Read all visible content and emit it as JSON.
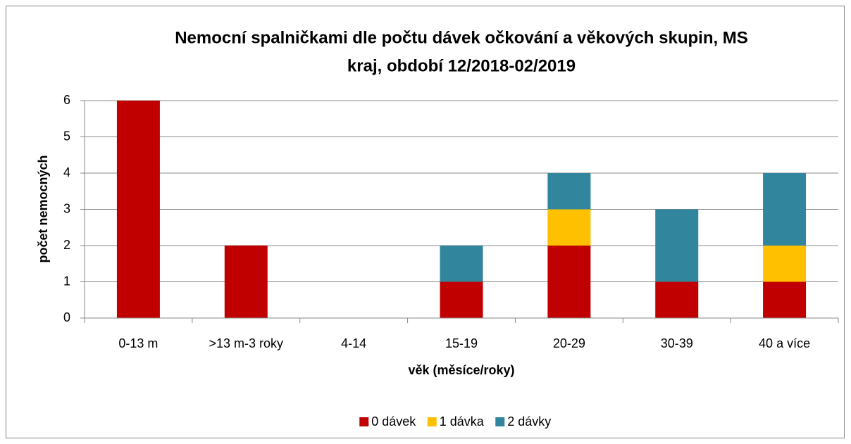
{
  "chart_data": {
    "type": "stacked_bar",
    "title": [
      "Nemocní spalničkami dle počtu dávek očkování a věkových skupin, MS",
      "kraj, období 12/2018-02/2019"
    ],
    "x_label": "věk (měsíce/roky)",
    "y_label": "počet nemocných",
    "categories": [
      "0-13 m",
      ">13 m-3 roky",
      "4-14",
      "15-19",
      "20-29",
      "30-39",
      "40 a více"
    ],
    "series": [
      {
        "name": "0 dávek",
        "color": "#c00000",
        "values": [
          6,
          2,
          0,
          1,
          2,
          1,
          1
        ]
      },
      {
        "name": "1 dávka",
        "color": "#ffc000",
        "values": [
          0,
          0,
          0,
          0,
          1,
          0,
          1
        ]
      },
      {
        "name": "2 dávky",
        "color": "#31859c",
        "values": [
          0,
          0,
          0,
          1,
          1,
          2,
          2
        ]
      }
    ],
    "ylim": [
      0,
      6
    ],
    "yticks": [
      0,
      1,
      2,
      3,
      4,
      5,
      6
    ],
    "grid": true,
    "legend": "bottom"
  }
}
